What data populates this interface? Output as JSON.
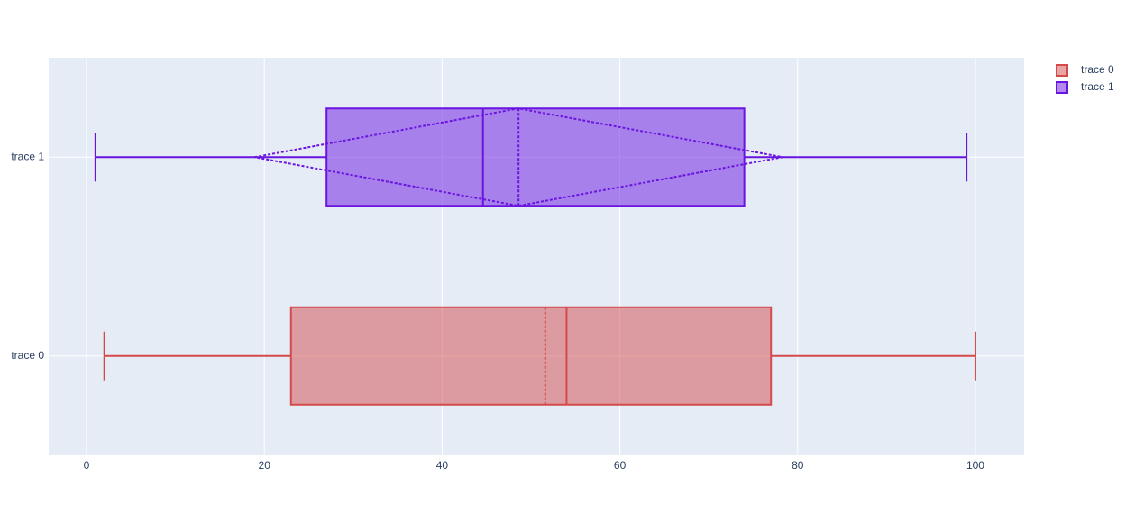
{
  "chart_data": {
    "type": "box",
    "orientation": "horizontal",
    "categories": [
      "trace 0",
      "trace 1"
    ],
    "series": [
      {
        "name": "trace 0",
        "color": "#d44a4a",
        "min": 2,
        "q1": 23,
        "median": 54,
        "q3": 77,
        "max": 100,
        "mean": 51.6
      },
      {
        "name": "trace 1",
        "color": "#6a14e0",
        "min": 1,
        "q1": 27,
        "median": 44.6,
        "q3": 74,
        "max": 99,
        "mean": 48.6,
        "sd": 29.7
      }
    ],
    "xlim": [
      -4.26,
      105.48
    ],
    "xticks": [
      0,
      20,
      40,
      60,
      80,
      100
    ],
    "grid": true,
    "legend": "top-right"
  }
}
